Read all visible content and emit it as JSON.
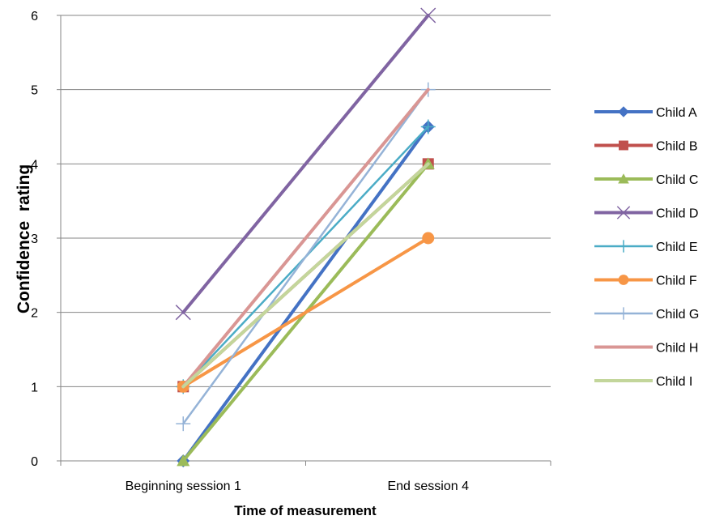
{
  "chart_data": {
    "type": "line",
    "title": "",
    "xlabel": "Time of measurement",
    "ylabel": "Confidence  rating",
    "categories": [
      "Beginning session 1",
      "End session 4"
    ],
    "ylim": [
      0,
      6
    ],
    "yticks": [
      0,
      1,
      2,
      3,
      4,
      5,
      6
    ],
    "grid": true,
    "legend_position": "right",
    "series": [
      {
        "name": "Child A",
        "values": [
          0,
          4.5
        ],
        "color": "#4472C4",
        "marker": "diamond"
      },
      {
        "name": "Child B",
        "values": [
          1,
          4
        ],
        "color": "#C0504D",
        "marker": "square"
      },
      {
        "name": "Child C",
        "values": [
          0,
          4
        ],
        "color": "#9BBB59",
        "marker": "triangle"
      },
      {
        "name": "Child D",
        "values": [
          2,
          6
        ],
        "color": "#8064A2",
        "marker": "x"
      },
      {
        "name": "Child E",
        "values": [
          1,
          4.5
        ],
        "color": "#4BACC6",
        "marker": "plus"
      },
      {
        "name": "Child F",
        "values": [
          1,
          3
        ],
        "color": "#F79646",
        "marker": "circle"
      },
      {
        "name": "Child G",
        "values": [
          0.5,
          5
        ],
        "color": "#95B3D7",
        "marker": "plus"
      },
      {
        "name": "Child H",
        "values": [
          1,
          5
        ],
        "color": "#D99694",
        "marker": "none"
      },
      {
        "name": "Child I",
        "values": [
          1,
          4
        ],
        "color": "#C3D69B",
        "marker": "none"
      }
    ]
  }
}
